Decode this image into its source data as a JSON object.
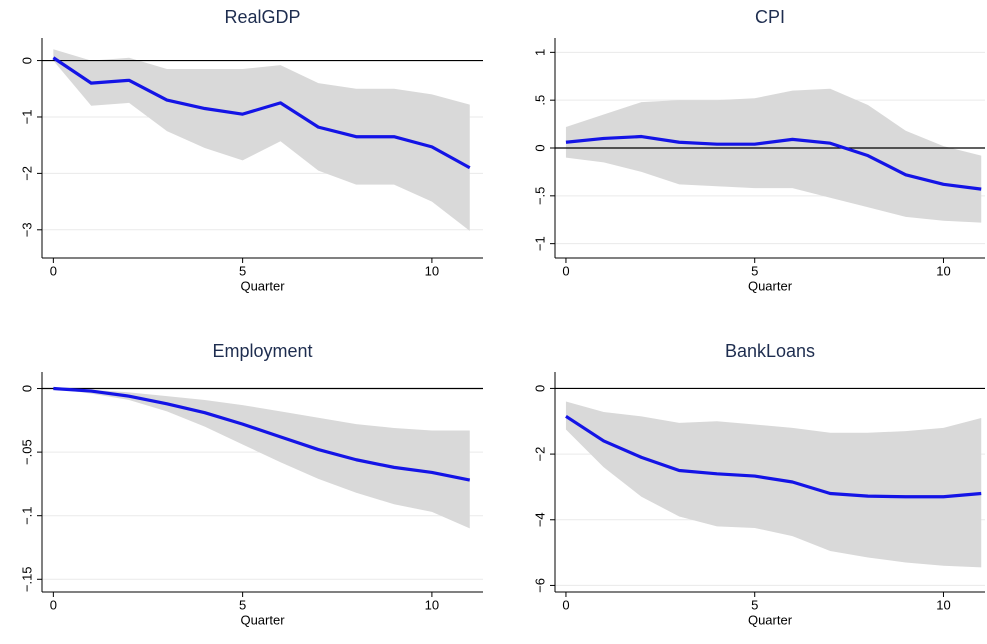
{
  "chart_data": [
    {
      "type": "line",
      "title": "RealGDP",
      "xlabel": "Quarter",
      "x": [
        0,
        1,
        2,
        3,
        4,
        5,
        6,
        7,
        8,
        9,
        10,
        11
      ],
      "xlim": [
        -0.3,
        11.35
      ],
      "xticks": [
        0,
        5,
        10
      ],
      "ylim": [
        -3.5,
        0.4
      ],
      "yticks": [
        {
          "value": -3,
          "label": "−3"
        },
        {
          "value": -2,
          "label": "−2"
        },
        {
          "value": -1,
          "label": "−1"
        },
        0
      ],
      "grid": true,
      "hline": 0,
      "hline_color": "#000000",
      "band": {
        "color": "#d9d9d9",
        "lower": [
          0.0,
          -0.8,
          -0.75,
          -1.25,
          -1.55,
          -1.77,
          -1.43,
          -1.95,
          -2.2,
          -2.2,
          -2.5,
          -3.02
        ],
        "upper": [
          0.2,
          0.0,
          0.05,
          -0.15,
          -0.15,
          -0.15,
          -0.08,
          -0.4,
          -0.5,
          -0.5,
          -0.6,
          -0.78
        ]
      },
      "series": [
        {
          "color": "#1414e6",
          "values": [
            0.05,
            -0.4,
            -0.35,
            -0.7,
            -0.85,
            -0.95,
            -0.75,
            -1.18,
            -1.35,
            -1.35,
            -1.53,
            -1.9
          ]
        }
      ]
    },
    {
      "type": "line",
      "title": "CPI",
      "xlabel": "Quarter",
      "x": [
        0,
        1,
        2,
        3,
        4,
        5,
        6,
        7,
        8,
        9,
        10,
        11
      ],
      "xlim": [
        -0.29,
        11.1
      ],
      "xticks": [
        0,
        5,
        10
      ],
      "ylim": [
        -1.15,
        1.15
      ],
      "yticks": [
        {
          "value": -1,
          "label": "−1"
        },
        {
          "value": -0.5,
          "label": "−.5"
        },
        0,
        {
          "value": 0.5,
          "label": ".5"
        },
        1
      ],
      "grid": true,
      "hline": 0,
      "hline_color": "#000000",
      "band": {
        "color": "#d9d9d9",
        "lower": [
          -0.1,
          -0.15,
          -0.25,
          -0.38,
          -0.4,
          -0.42,
          -0.42,
          -0.52,
          -0.62,
          -0.72,
          -0.76,
          -0.78
        ],
        "upper": [
          0.22,
          0.35,
          0.48,
          0.5,
          0.5,
          0.52,
          0.6,
          0.62,
          0.45,
          0.18,
          0.02,
          -0.08
        ]
      },
      "series": [
        {
          "color": "#1414e6",
          "values": [
            0.06,
            0.1,
            0.12,
            0.06,
            0.04,
            0.04,
            0.09,
            0.05,
            -0.08,
            -0.28,
            -0.38,
            -0.43
          ]
        }
      ]
    },
    {
      "type": "line",
      "title": "Employment",
      "xlabel": "Quarter",
      "x": [
        0,
        1,
        2,
        3,
        4,
        5,
        6,
        7,
        8,
        9,
        10,
        11
      ],
      "xlim": [
        -0.3,
        11.35
      ],
      "xticks": [
        0,
        5,
        10
      ],
      "ylim": [
        -0.16,
        0.013
      ],
      "yticks": [
        {
          "value": -0.15,
          "label": "−.15"
        },
        {
          "value": -0.1,
          "label": "−.1"
        },
        {
          "value": -0.05,
          "label": "−.05"
        },
        0
      ],
      "grid": true,
      "hline": 0,
      "hline_color": "#000000",
      "band": {
        "color": "#d9d9d9",
        "lower": [
          0,
          -0.004,
          -0.009,
          -0.018,
          -0.03,
          -0.044,
          -0.058,
          -0.071,
          -0.082,
          -0.091,
          -0.097,
          -0.11
        ],
        "upper": [
          0,
          -0.001,
          -0.003,
          -0.006,
          -0.009,
          -0.013,
          -0.018,
          -0.023,
          -0.028,
          -0.031,
          -0.033,
          -0.033
        ]
      },
      "series": [
        {
          "color": "#1414e6",
          "values": [
            0,
            -0.002,
            -0.006,
            -0.012,
            -0.019,
            -0.028,
            -0.038,
            -0.048,
            -0.056,
            -0.062,
            -0.066,
            -0.072
          ]
        }
      ]
    },
    {
      "type": "line",
      "title": "BankLoans",
      "xlabel": "Quarter",
      "x": [
        0,
        1,
        2,
        3,
        4,
        5,
        6,
        7,
        8,
        9,
        10,
        11
      ],
      "xlim": [
        -0.29,
        11.1
      ],
      "xticks": [
        0,
        5,
        10
      ],
      "ylim": [
        -6.2,
        0.5
      ],
      "yticks": [
        {
          "value": -6,
          "label": "−6"
        },
        {
          "value": -4,
          "label": "−4"
        },
        {
          "value": -2,
          "label": "−2"
        },
        0
      ],
      "grid": true,
      "hline": 0,
      "hline_color": "#000000",
      "band": {
        "color": "#d9d9d9",
        "lower": [
          -1.25,
          -2.4,
          -3.3,
          -3.9,
          -4.2,
          -4.25,
          -4.5,
          -4.95,
          -5.15,
          -5.3,
          -5.4,
          -5.45
        ],
        "upper": [
          -0.4,
          -0.72,
          -0.85,
          -1.05,
          -1.0,
          -1.1,
          -1.2,
          -1.35,
          -1.35,
          -1.3,
          -1.2,
          -0.9
        ]
      },
      "series": [
        {
          "color": "#1414e6",
          "values": [
            -0.85,
            -1.6,
            -2.1,
            -2.5,
            -2.6,
            -2.67,
            -2.85,
            -3.2,
            -3.28,
            -3.3,
            -3.3,
            -3.2
          ]
        }
      ]
    }
  ]
}
